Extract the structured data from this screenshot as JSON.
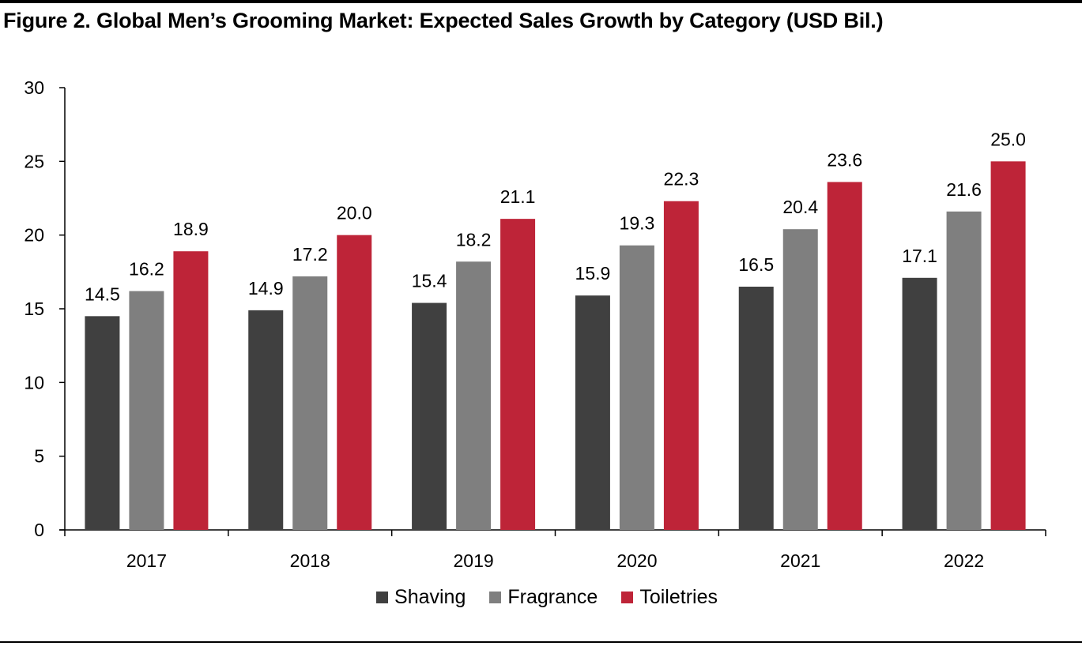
{
  "title": "Figure 2. Global Men’s Grooming Market: Expected Sales Growth by Category (USD Bil.)",
  "chart_data": {
    "type": "bar",
    "title": "Figure 2. Global Men’s Grooming Market: Expected Sales Growth by Category (USD Bil.)",
    "xlabel": "",
    "ylabel": "",
    "ylim": [
      0,
      30
    ],
    "yticks": [
      "0",
      "5",
      "10",
      "15",
      "20",
      "25",
      "30"
    ],
    "grid": false,
    "legend_position": "bottom",
    "categories": [
      "2017",
      "2018",
      "2019",
      "2020",
      "2021",
      "2022"
    ],
    "series": [
      {
        "name": "Shaving",
        "color": "#404040",
        "values": [
          14.5,
          14.9,
          15.4,
          15.9,
          16.5,
          17.1
        ],
        "labels": [
          "14.5",
          "14.9",
          "15.4",
          "15.9",
          "16.5",
          "17.1"
        ]
      },
      {
        "name": "Fragrance",
        "color": "#7f7f7f",
        "values": [
          16.2,
          17.2,
          18.2,
          19.3,
          20.4,
          21.6
        ],
        "labels": [
          "16.2",
          "17.2",
          "18.2",
          "19.3",
          "20.4",
          "21.6"
        ]
      },
      {
        "name": "Toiletries",
        "color": "#be2438",
        "values": [
          18.9,
          20.0,
          21.1,
          22.3,
          23.6,
          25.0
        ],
        "labels": [
          "18.9",
          "20.0",
          "21.1",
          "22.3",
          "23.6",
          "25.0"
        ]
      }
    ]
  }
}
